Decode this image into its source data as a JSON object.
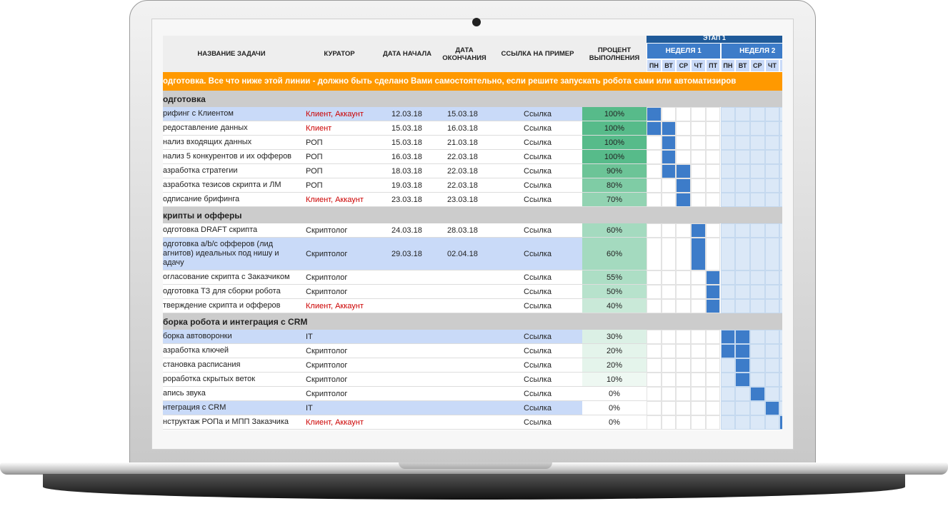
{
  "header": {
    "columns": [
      "НАЗВАНИЕ ЗАДАЧИ",
      "КУРАТОР",
      "ДАТА НАЧАЛА",
      "ДАТА ОКОНЧАНИЯ",
      "ССЫЛКА НА ПРИМЕР",
      "ПРОЦЕНТ ВЫПОЛНЕНИЯ"
    ],
    "stage": "ЭТАП 1",
    "weeks": [
      "НЕДЕЛЯ 1",
      "НЕДЕЛЯ 2"
    ],
    "days": [
      "ПН",
      "ВТ",
      "СР",
      "ЧТ",
      "ПТ",
      "ПН",
      "ВТ",
      "СР",
      "ЧТ"
    ]
  },
  "banner": "одготовка. Все что ниже этой линии - должно быть сделано Вами самостоятельно, если решите запускать робота сами или автоматизиров",
  "sections": [
    {
      "title": "одготовка",
      "rows": [
        {
          "task": "рифинг с Клиентом",
          "curator": "Клиент, Аккаунт",
          "start": "12.03.18",
          "end": "15.03.18",
          "link": "Ссылка",
          "percent": "100%",
          "curator_color": "#cc0000",
          "row_color": "#c9daf8",
          "percent_color": "#57bb8a"
        },
        {
          "task": "редоставление данных",
          "curator": "Клиент",
          "start": "15.03.18",
          "end": "16.03.18",
          "link": "Ссылка",
          "percent": "100%",
          "curator_color": "#cc0000",
          "percent_color": "#57bb8a"
        },
        {
          "task": "нализ входящих данных",
          "curator": "РОП",
          "start": "15.03.18",
          "end": "21.03.18",
          "link": "Ссылка",
          "percent": "100%",
          "percent_color": "#57bb8a"
        },
        {
          "task": "нализ 5 конкурентов и их офферов",
          "curator": "РОП",
          "start": "16.03.18",
          "end": "22.03.18",
          "link": "Ссылка",
          "percent": "100%",
          "percent_color": "#57bb8a"
        },
        {
          "task": "азработка стратегии",
          "curator": "РОП",
          "start": "18.03.18",
          "end": "22.03.18",
          "link": "Ссылка",
          "percent": "90%",
          "percent_color": "#6cc497"
        },
        {
          "task": "азработка тезисов скрипта и ЛМ",
          "curator": "РОП",
          "start": "19.03.18",
          "end": "22.03.18",
          "link": "Ссылка",
          "percent": "80%",
          "percent_color": "#7fcca5"
        },
        {
          "task": "одписание брифинга",
          "curator": "Клиент, Аккаунт",
          "start": "23.03.18",
          "end": "23.03.18",
          "link": "Ссылка",
          "percent": "70%",
          "curator_color": "#cc0000",
          "percent_color": "#92d3b2"
        }
      ]
    },
    {
      "title": "крипты и офферы",
      "rows": [
        {
          "task": "одготовка DRAFT скрипта",
          "curator": "Скриптолог",
          "start": "24.03.18",
          "end": "28.03.18",
          "link": "Ссылка",
          "percent": "60%",
          "percent_color": "#a4dabf"
        },
        {
          "task": "одготовка a/b/c офферов (лид агнитов) идеальных под нишу и адачу",
          "curator": "Скриптолог",
          "start": "29.03.18",
          "end": "02.04.18",
          "link": "Ссылка",
          "percent": "60%",
          "row_color": "#c9daf8",
          "percent_color": "#a4dabf"
        },
        {
          "task": "огласование скрипта с Заказчиком",
          "curator": "Скриптолог",
          "link": "Ссылка",
          "percent": "55%",
          "percent_color": "#addec5"
        },
        {
          "task": "одготовка ТЗ для сборки робота",
          "curator": "Скриптолог",
          "link": "Ссылка",
          "percent": "50%",
          "percent_color": "#b7e2cc"
        },
        {
          "task": "тверждение скрипта и офферов",
          "curator": "Клиент, Аккаунт",
          "link": "Ссылка",
          "percent": "40%",
          "curator_color": "#cc0000",
          "percent_color": "#c9e9d8"
        }
      ]
    },
    {
      "title": "борка робота и интеграция с CRM",
      "rows": [
        {
          "task": "борка автоворонки",
          "curator": "IT",
          "link": "Ссылка",
          "percent": "30%",
          "row_color": "#c9daf8",
          "percent_color": "#dbf0e5"
        },
        {
          "task": "азработка ключей",
          "curator": "Скриптолог",
          "link": "Ссылка",
          "percent": "20%",
          "percent_color": "#e4f4eb"
        },
        {
          "task": "становка расписания",
          "curator": "Скриптолог",
          "link": "Ссылка",
          "percent": "20%",
          "percent_color": "#e4f4eb"
        },
        {
          "task": "роработка скрытых веток",
          "curator": "Скриптолог",
          "link": "Ссылка",
          "percent": "10%",
          "percent_color": "#eef8f2"
        },
        {
          "task": "апись звука",
          "curator": "Скриптолог",
          "link": "Ссылка",
          "percent": "0%"
        },
        {
          "task": "нтеграция с CRM",
          "curator": "IT",
          "link": "Ссылка",
          "percent": "0%",
          "row_color": "#c9daf8"
        },
        {
          "task": "нструктаж РОПа и МПП Заказчика",
          "curator": "Клиент, Аккаунт",
          "link": "Ссылка",
          "percent": "0%",
          "curator_color": "#cc0000"
        }
      ]
    }
  ]
}
